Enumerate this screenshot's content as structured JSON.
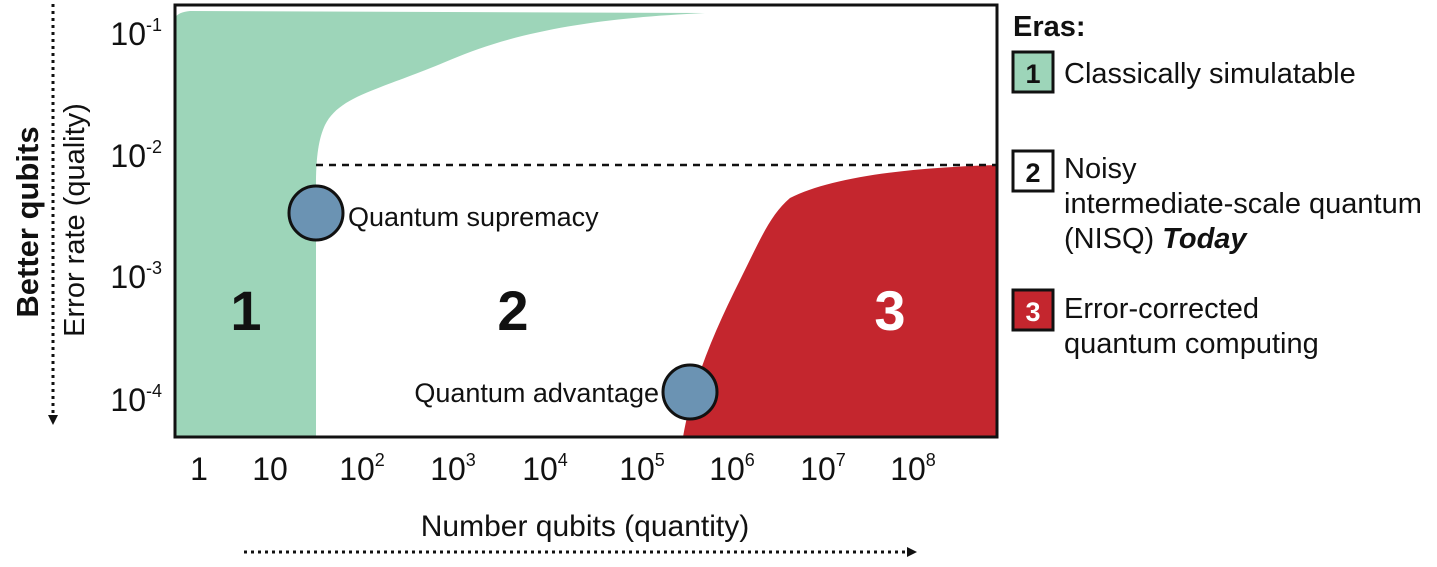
{
  "diagram": {
    "y_axis": {
      "label_outer": "Better qubits",
      "label_inner": "Error rate (quality)",
      "ticks": [
        {
          "base": "10",
          "exp": "-1"
        },
        {
          "base": "10",
          "exp": "-2"
        },
        {
          "base": "10",
          "exp": "-3"
        },
        {
          "base": "10",
          "exp": "-4"
        }
      ]
    },
    "x_axis": {
      "label": "Number qubits (quantity)",
      "ticks": [
        {
          "base": "1",
          "exp": ""
        },
        {
          "base": "10",
          "exp": ""
        },
        {
          "base": "10",
          "exp": "2"
        },
        {
          "base": "10",
          "exp": "3"
        },
        {
          "base": "10",
          "exp": "4"
        },
        {
          "base": "10",
          "exp": "5"
        },
        {
          "base": "10",
          "exp": "6"
        },
        {
          "base": "10",
          "exp": "7"
        },
        {
          "base": "10",
          "exp": "8"
        }
      ]
    },
    "regions": [
      {
        "id": "1",
        "number": "1",
        "color": "#9dd5b9"
      },
      {
        "id": "2",
        "number": "2",
        "color": "#ffffff"
      },
      {
        "id": "3",
        "number": "3",
        "color": "#c4262e"
      }
    ],
    "milestones": [
      {
        "label": "Quantum supremacy",
        "color": "#6b93b3"
      },
      {
        "label": "Quantum advantage",
        "color": "#6b93b3"
      }
    ],
    "legend": {
      "title": "Eras:",
      "items": [
        {
          "num": "1",
          "lines": [
            "Classically simulatable"
          ],
          "emphasis": "",
          "fill": "#9dd5b9",
          "num_color": "#111111"
        },
        {
          "num": "2",
          "lines": [
            "Noisy",
            "intermediate-scale quantum",
            "(NISQ)"
          ],
          "emphasis": "Today",
          "fill": "#ffffff",
          "num_color": "#111111"
        },
        {
          "num": "3",
          "lines": [
            "Error-corrected",
            "quantum computing"
          ],
          "emphasis": "",
          "fill": "#c4262e",
          "num_color": "#ffffff"
        }
      ]
    }
  }
}
